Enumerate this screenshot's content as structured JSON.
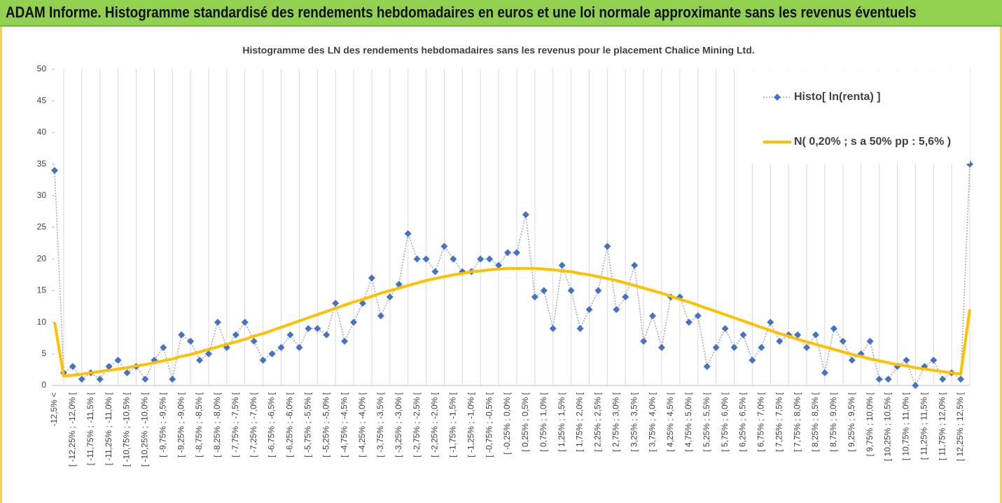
{
  "header": {
    "title": "ADAM Informe. Histogramme standardisé des rendements hebdomadaires en euros et une loi normale approximante sans les revenus éventuels"
  },
  "chart_data": {
    "type": "line",
    "title": "Histogramme des LN des rendements hebdomadaires sans les revenus pour le placement Chalice Mining Ltd.",
    "categories": [
      "-12,5% <",
      null,
      "[ -12,25% ; -12,0% [",
      null,
      "[ -11,75% ; -11,5% [",
      null,
      "[ -11,25% ; -11,0% [",
      null,
      "[ -10,75% ; -10,5% [",
      null,
      "[ -10,25% ; -10,0% [",
      null,
      "[ -9,75% ; -9,5% [",
      null,
      "[ -9,25% ; -9,0% [",
      null,
      "[ -8,75% ; -8,5% [",
      null,
      "[ -8,25% ; -8,0% [",
      null,
      "[ -7,75% ; -7,5% [",
      null,
      "[ -7,25% ; -7,0% [",
      null,
      "[ -6,75% ; -6,5% [",
      null,
      "[ -6,25% ; -6,0% [",
      null,
      "[ -5,75% ; -5,5% [",
      null,
      "[ -5,25% ; -5,0% [",
      null,
      "[ -4,75% ; -4,5% [",
      null,
      "[ -4,25% ; -4,0% [",
      null,
      "[ -3,75% ; -3,5% [",
      null,
      "[ -3,25% ; -3,0% [",
      null,
      "[ -2,75% ; -2,5% [",
      null,
      "[ -2,25% ; -2,0% [",
      null,
      "[ -1,75% ; -1,5% [",
      null,
      "[ -1,25% ; -1,0% [",
      null,
      "[ -0,75% ; -0,5% [",
      null,
      "[ -0,25% ; 0,0% [",
      null,
      "[ 0,25% ; 0,5% [",
      null,
      "[ 0,75% ; 1,0% [",
      null,
      "[ 1,25% ; 1,5% [",
      null,
      "[ 1,75% ; 2,0% [",
      null,
      "[ 2,25% ; 2,5% [",
      null,
      "[ 2,75% ; 3,0% [",
      null,
      "[ 3,25% ; 3,5% [",
      null,
      "[ 3,75% ; 4,0% [",
      null,
      "[ 4,25% ; 4,5% [",
      null,
      "[ 4,75% ; 5,0% [",
      null,
      "[ 5,25% ; 5,5% [",
      null,
      "[ 5,75% ; 6,0% [",
      null,
      "[ 6,25% ; 6,5% [",
      null,
      "[ 6,75% ; 7,0% [",
      null,
      "[ 7,25% ; 7,5% [",
      null,
      "[ 7,75% ; 8,0% [",
      null,
      "[ 8,25% ; 8,5% [",
      null,
      "[ 8,75% ; 9,0% [",
      null,
      "[ 9,25% ; 9,5% [",
      null,
      "[ 9,75% ; 10,0% [",
      null,
      "[ 10,25% ; 10,5% [",
      null,
      "[ 10,75% ; 11,0% [",
      null,
      "[ 11,25% ; 11,5% [",
      null,
      "[ 11,75% ; 12,0% [",
      null,
      "[ 12,25% ; 12,5% [",
      null
    ],
    "series": [
      {
        "name": "Histo[ ln(renta) ]",
        "color": "#4472c4",
        "values": [
          34,
          2,
          3,
          1,
          2,
          1,
          3,
          4,
          2,
          3,
          1,
          4,
          6,
          1,
          8,
          7,
          4,
          5,
          10,
          6,
          8,
          10,
          7,
          4,
          5,
          6,
          8,
          6,
          9,
          9,
          8,
          13,
          7,
          10,
          13,
          17,
          11,
          14,
          16,
          24,
          20,
          20,
          18,
          22,
          20,
          18,
          18,
          20,
          20,
          19,
          21,
          21,
          27,
          14,
          15,
          9,
          19,
          15,
          9,
          12,
          15,
          22,
          12,
          14,
          19,
          7,
          11,
          6,
          14,
          14,
          10,
          11,
          3,
          6,
          9,
          6,
          8,
          4,
          6,
          10,
          7,
          8,
          8,
          6,
          8,
          2,
          9,
          7,
          4,
          5,
          7,
          1,
          1,
          3,
          4,
          0,
          3,
          4,
          1,
          2,
          1,
          35
        ]
      },
      {
        "name": "N( 0,20% ; s a 50% pp : 5,6% )",
        "color": "#ffc000",
        "values": [
          10,
          1.5,
          1.6,
          1.8,
          2.0,
          2.2,
          2.4,
          2.6,
          2.8,
          3.1,
          3.3,
          3.6,
          3.9,
          4.2,
          4.6,
          4.9,
          5.3,
          5.7,
          6.1,
          6.5,
          6.9,
          7.3,
          7.8,
          8.2,
          8.7,
          9.2,
          9.7,
          10.2,
          10.7,
          11.2,
          11.7,
          12.2,
          12.7,
          13.2,
          13.6,
          14.1,
          14.6,
          15.0,
          15.4,
          15.8,
          16.2,
          16.6,
          16.9,
          17.2,
          17.5,
          17.7,
          18.0,
          18.1,
          18.3,
          18.4,
          18.5,
          18.5,
          18.5,
          18.5,
          18.4,
          18.3,
          18.1,
          18.0,
          17.7,
          17.5,
          17.2,
          16.9,
          16.6,
          16.2,
          15.8,
          15.4,
          15.0,
          14.6,
          14.1,
          13.6,
          13.2,
          12.7,
          12.2,
          11.7,
          11.2,
          10.7,
          10.2,
          9.7,
          9.2,
          8.7,
          8.2,
          7.8,
          7.3,
          6.9,
          6.5,
          6.1,
          5.7,
          5.3,
          4.9,
          4.6,
          4.2,
          3.9,
          3.6,
          3.3,
          3.1,
          2.8,
          2.6,
          2.4,
          2.2,
          2.0,
          1.8,
          12
        ]
      }
    ],
    "ylim": [
      0,
      50
    ],
    "yticks": [
      0,
      5,
      10,
      15,
      20,
      25,
      30,
      35,
      40,
      45,
      50
    ],
    "grid": "x",
    "legend": "top-right"
  }
}
